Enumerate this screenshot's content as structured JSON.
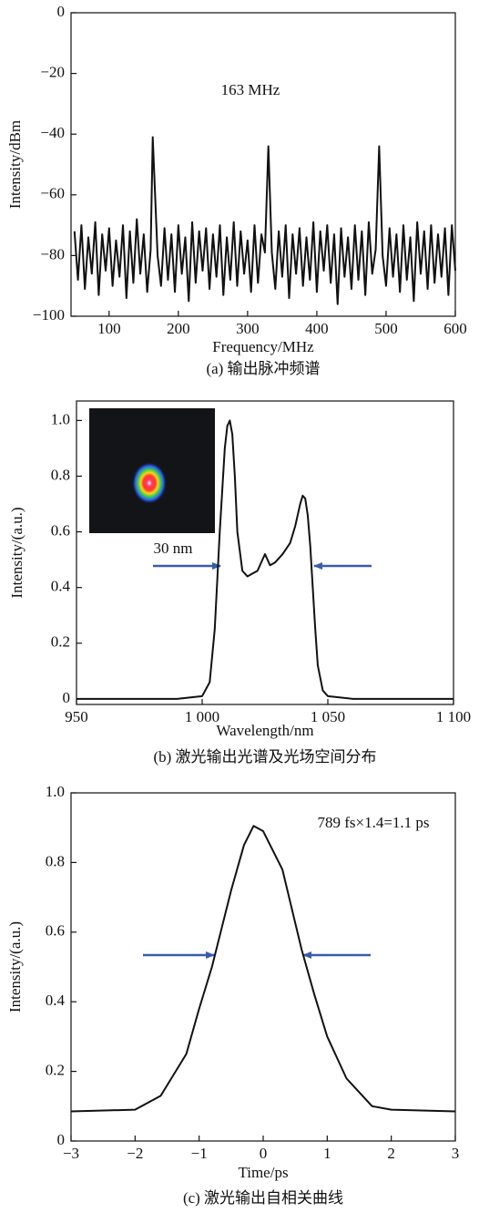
{
  "chart_data": [
    {
      "type": "line",
      "x": [
        50,
        55,
        60,
        65,
        70,
        75,
        80,
        85,
        90,
        95,
        100,
        105,
        110,
        115,
        120,
        125,
        130,
        135,
        140,
        145,
        150,
        155,
        160,
        163,
        170,
        175,
        180,
        185,
        190,
        195,
        200,
        205,
        210,
        215,
        220,
        225,
        230,
        235,
        240,
        245,
        250,
        255,
        260,
        265,
        270,
        275,
        280,
        285,
        290,
        295,
        300,
        305,
        310,
        315,
        320,
        325,
        330,
        335,
        340,
        345,
        350,
        355,
        360,
        365,
        370,
        375,
        380,
        385,
        390,
        395,
        400,
        405,
        410,
        415,
        420,
        425,
        430,
        435,
        440,
        445,
        450,
        455,
        460,
        465,
        470,
        475,
        480,
        485,
        490,
        495,
        500,
        505,
        510,
        515,
        520,
        525,
        530,
        535,
        540,
        545,
        550,
        555,
        560,
        565,
        570,
        575,
        580,
        585,
        590,
        595,
        600
      ],
      "values": [
        -72,
        -88,
        -70,
        -91,
        -74,
        -86,
        -69,
        -93,
        -73,
        -85,
        -71,
        -90,
        -75,
        -87,
        -70,
        -94,
        -72,
        -89,
        -68,
        -86,
        -73,
        -92,
        -78,
        -41,
        -80,
        -90,
        -71,
        -88,
        -73,
        -92,
        -70,
        -86,
        -74,
        -95,
        -69,
        -89,
        -72,
        -85,
        -71,
        -91,
        -73,
        -87,
        -70,
        -93,
        -74,
        -88,
        -69,
        -90,
        -72,
        -86,
        -75,
        -92,
        -70,
        -89,
        -73,
        -79,
        -44,
        -79,
        -91,
        -72,
        -87,
        -70,
        -94,
        -73,
        -86,
        -71,
        -90,
        -74,
        -88,
        -69,
        -92,
        -72,
        -85,
        -70,
        -89,
        -73,
        -96,
        -71,
        -87,
        -74,
        -91,
        -70,
        -88,
        -72,
        -93,
        -69,
        -86,
        -78,
        -44,
        -80,
        -90,
        -71,
        -87,
        -73,
        -92,
        -70,
        -88,
        -74,
        -95,
        -69,
        -86,
        -72,
        -91,
        -70,
        -89,
        -73,
        -87,
        -71,
        -93,
        -70,
        -85
      ],
      "color": "#1a1a1a",
      "xlim": [
        45,
        600
      ],
      "xticks": [
        100,
        200,
        300,
        400,
        500,
        600
      ],
      "ylim": [
        -100,
        0
      ],
      "yticks": [
        {
          "value": -100,
          "label": "−100"
        },
        {
          "value": -80,
          "label": "−80"
        },
        {
          "value": -60,
          "label": "−60"
        },
        {
          "value": -40,
          "label": "−40"
        },
        {
          "value": -20,
          "label": "−20"
        },
        0
      ],
      "x_label": "Frequency/MHz",
      "y_label": "Intensity/dBm",
      "annotation": "163 MHz",
      "caption": "(a) 输出脉冲频谱"
    },
    {
      "type": "line",
      "x": [
        950,
        990,
        1000,
        1003,
        1005,
        1007,
        1009,
        1010,
        1011,
        1012,
        1013,
        1014,
        1016,
        1018,
        1020,
        1022,
        1024,
        1025,
        1026,
        1027,
        1029,
        1032,
        1035,
        1037,
        1039,
        1040,
        1041,
        1042,
        1043,
        1044,
        1045,
        1046,
        1048,
        1050,
        1060,
        1100
      ],
      "values": [
        0,
        0,
        0.01,
        0.06,
        0.25,
        0.6,
        0.9,
        0.98,
        1.0,
        0.95,
        0.8,
        0.6,
        0.46,
        0.44,
        0.45,
        0.46,
        0.5,
        0.52,
        0.5,
        0.48,
        0.49,
        0.52,
        0.56,
        0.62,
        0.7,
        0.73,
        0.72,
        0.66,
        0.55,
        0.4,
        0.25,
        0.12,
        0.03,
        0.01,
        0,
        0
      ],
      "color": "#1a1a1a",
      "xlim": [
        950,
        1100
      ],
      "xticks": [
        950,
        {
          "value": 1000,
          "label": "1 000"
        },
        {
          "value": 1050,
          "label": "1 050"
        },
        {
          "value": 1100,
          "label": "1 100"
        }
      ],
      "ylim": [
        -0.02,
        1.07
      ],
      "yticks": [
        0,
        0.2,
        0.4,
        0.6,
        0.8,
        {
          "value": 1,
          "label": "1.0"
        }
      ],
      "x_label": "Wavelength/nm",
      "y_label": "Intensity/(a.u.)",
      "annotation": "30 nm",
      "caption": "(b) 激光输出光谱及光场空间分布"
    },
    {
      "type": "line",
      "x": [
        -3,
        -2,
        -1.6,
        -1.2,
        -1,
        -0.8,
        -0.5,
        -0.3,
        -0.15,
        0,
        0.3,
        0.6,
        0.8,
        1,
        1.3,
        1.7,
        2,
        3
      ],
      "values": [
        0.085,
        0.09,
        0.13,
        0.25,
        0.38,
        0.5,
        0.72,
        0.85,
        0.905,
        0.89,
        0.78,
        0.55,
        0.42,
        0.3,
        0.18,
        0.1,
        0.09,
        0.085
      ],
      "color": "#1a1a1a",
      "xlim": [
        -3,
        3
      ],
      "xticks": [
        {
          "value": -3,
          "label": "−3"
        },
        {
          "value": -2,
          "label": "−2"
        },
        {
          "value": -1,
          "label": "−1"
        },
        0,
        1,
        2,
        3
      ],
      "ylim": [
        0,
        1
      ],
      "yticks": [
        0,
        0.2,
        0.4,
        0.6,
        0.8,
        {
          "value": 1,
          "label": "1.0"
        }
      ],
      "x_label": "Time/ps",
      "y_label": "Intensity/(a.u.)",
      "annotation": "789 fs×1.4=1.1 ps",
      "caption": "(c) 激光输出自相关曲线"
    }
  ]
}
